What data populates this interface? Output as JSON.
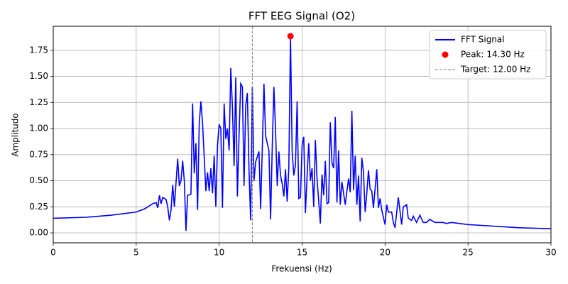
{
  "chart_data": {
    "type": "line",
    "title": "FFT EEG Signal (O2)",
    "x_label": "Frekuensi (Hz)",
    "y_label": "Amplitudo",
    "x": [
      0,
      2,
      3.5,
      5,
      5.5,
      6,
      6.2,
      6.3,
      6.4,
      6.5,
      6.6,
      6.8,
      6.9,
      7.0,
      7.1,
      7.2,
      7.3,
      7.5,
      7.6,
      7.7,
      7.8,
      7.9,
      8.0,
      8.1,
      8.3,
      8.4,
      8.5,
      8.6,
      8.7,
      8.8,
      8.9,
      9.0,
      9.2,
      9.3,
      9.4,
      9.5,
      9.6,
      9.7,
      9.8,
      9.9,
      10.0,
      10.1,
      10.2,
      10.3,
      10.4,
      10.5,
      10.6,
      10.7,
      10.8,
      10.9,
      11.0,
      11.1,
      11.2,
      11.3,
      11.4,
      11.5,
      11.6,
      11.7,
      11.8,
      11.9,
      12.0,
      12.1,
      12.2,
      12.4,
      12.5,
      12.6,
      12.7,
      12.8,
      13.0,
      13.1,
      13.2,
      13.3,
      13.4,
      13.5,
      13.6,
      13.7,
      13.8,
      13.9,
      14.0,
      14.1,
      14.2,
      14.3,
      14.4,
      14.5,
      14.6,
      14.7,
      14.8,
      14.9,
      15.0,
      15.1,
      15.2,
      15.3,
      15.4,
      15.5,
      15.6,
      15.7,
      15.8,
      15.9,
      16.1,
      16.2,
      16.3,
      16.4,
      16.5,
      16.6,
      16.7,
      16.8,
      16.9,
      17.0,
      17.1,
      17.2,
      17.3,
      17.4,
      17.6,
      17.7,
      17.8,
      17.9,
      18.0,
      18.1,
      18.2,
      18.3,
      18.4,
      18.5,
      18.6,
      18.7,
      18.8,
      18.9,
      19.0,
      19.1,
      19.2,
      19.3,
      19.5,
      19.6,
      19.7,
      19.8,
      20.0,
      20.1,
      20.2,
      20.4,
      20.5,
      20.6,
      20.8,
      21.0,
      21.1,
      21.3,
      21.4,
      21.6,
      21.7,
      21.9,
      22.1,
      22.3,
      22.5,
      22.7,
      23.0,
      23.5,
      23.7,
      24.0,
      25,
      26,
      27,
      28,
      30
    ],
    "series": [
      {
        "name": "FFT Signal",
        "color": "#0000ff",
        "values": [
          0.14,
          0.15,
          0.17,
          0.2,
          0.23,
          0.28,
          0.29,
          0.24,
          0.36,
          0.28,
          0.34,
          0.32,
          0.25,
          0.12,
          0.22,
          0.46,
          0.25,
          0.71,
          0.45,
          0.5,
          0.69,
          0.5,
          0.02,
          0.36,
          0.37,
          1.24,
          0.57,
          0.86,
          0.22,
          1.05,
          1.26,
          1.05,
          0.4,
          0.58,
          0.4,
          0.62,
          0.38,
          0.74,
          0.25,
          0.84,
          1.04,
          1.0,
          0.24,
          1.24,
          0.9,
          1.0,
          0.79,
          1.58,
          1.2,
          0.64,
          1.49,
          0.35,
          0.94,
          1.43,
          1.4,
          0.45,
          1.22,
          1.34,
          0.6,
          0.12,
          1.4,
          0.5,
          0.68,
          0.78,
          0.23,
          0.8,
          1.43,
          0.93,
          0.79,
          0.13,
          0.82,
          1.4,
          0.98,
          0.45,
          0.78,
          0.55,
          0.47,
          0.35,
          0.61,
          0.3,
          0.62,
          1.885,
          0.78,
          0.55,
          0.65,
          1.26,
          0.33,
          0.34,
          0.84,
          0.92,
          0.19,
          0.54,
          0.86,
          0.5,
          0.62,
          0.25,
          0.89,
          0.52,
          0.09,
          0.56,
          0.36,
          0.69,
          0.28,
          0.29,
          1.06,
          0.67,
          0.62,
          1.11,
          0.29,
          0.79,
          0.27,
          0.49,
          0.27,
          0.4,
          0.52,
          0.39,
          1.17,
          0.41,
          0.74,
          0.27,
          0.55,
          0.11,
          0.72,
          0.58,
          0.2,
          0.38,
          0.6,
          0.42,
          0.4,
          0.24,
          0.61,
          0.24,
          0.33,
          0.22,
          0.08,
          0.27,
          0.2,
          0.2,
          0.1,
          0.05,
          0.34,
          0.08,
          0.25,
          0.27,
          0.14,
          0.12,
          0.16,
          0.1,
          0.17,
          0.1,
          0.1,
          0.13,
          0.1,
          0.1,
          0.09,
          0.1,
          0.08,
          0.07,
          0.06,
          0.05,
          0.04
        ]
      }
    ],
    "peak": {
      "name": "Peak: 14.30 Hz",
      "color": "#ff0000",
      "x": 14.3,
      "y": 1.885
    },
    "target": {
      "name": "Target: 12.00 Hz",
      "color": "#808080",
      "x": 12
    },
    "xlim": [
      0,
      30
    ],
    "ylim": [
      -0.095,
      1.98
    ],
    "xticks": [
      0,
      5,
      10,
      15,
      20,
      25,
      30
    ],
    "yticks": [
      {
        "value": 0,
        "label": "0.00"
      },
      {
        "value": 0.25,
        "label": "0.25"
      },
      {
        "value": 0.5,
        "label": "0.50"
      },
      {
        "value": 0.75,
        "label": "0.75"
      },
      {
        "value": 1,
        "label": "1.00"
      },
      {
        "value": 1.25,
        "label": "1.25"
      },
      {
        "value": 1.5,
        "label": "1.50"
      },
      {
        "value": 1.75,
        "label": "1.75"
      }
    ],
    "grid": true,
    "legend": "upper right"
  }
}
